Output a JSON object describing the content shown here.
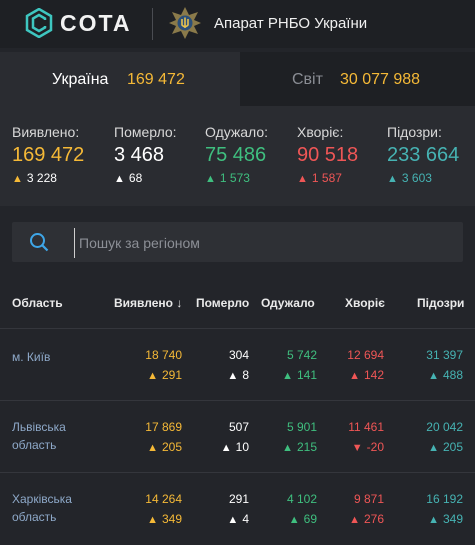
{
  "header": {
    "logo_text": "COTA",
    "org_name": "Апарат РНБО України"
  },
  "tabs": [
    {
      "label": "Україна",
      "value": "169 472"
    },
    {
      "label": "Світ",
      "value": "30 077 988"
    }
  ],
  "stats": [
    {
      "label": "Виявлено:",
      "value": "169 472",
      "delta": "3 228",
      "color": "#f5b937",
      "delta_dir": "up"
    },
    {
      "label": "Померло:",
      "value": "3 468",
      "delta": "68",
      "color": "#ffffff",
      "delta_dir": "up"
    },
    {
      "label": "Одужало:",
      "value": "75 486",
      "delta": "1 573",
      "color": "#3fbf7f",
      "delta_dir": "up"
    },
    {
      "label": "Хворіє:",
      "value": "90 518",
      "delta": "1 587",
      "color": "#ef5656",
      "delta_dir": "up"
    },
    {
      "label": "Підозри:",
      "value": "233 664",
      "delta": "3 603",
      "color": "#46b3b3",
      "delta_dir": "up"
    }
  ],
  "search": {
    "placeholder": "Пошук за регіоном",
    "value": ""
  },
  "table": {
    "headers": {
      "region": "Область",
      "confirmed": "Виявлено",
      "sort_arrow": "↓",
      "deaths": "Померло",
      "recovered": "Одужало",
      "sick": "Хворіє",
      "suspected": "Підозри"
    },
    "rows": [
      {
        "region_line1": "м. Київ",
        "region_line2": "",
        "confirmed": "18 740",
        "confirmed_delta": "291",
        "deaths": "304",
        "deaths_delta": "8",
        "recovered": "5 742",
        "recovered_delta": "141",
        "sick": "12 694",
        "sick_delta": "142",
        "suspected": "31 397",
        "suspected_delta": "488"
      },
      {
        "region_line1": "Львівська",
        "region_line2": "область",
        "confirmed": "17 869",
        "confirmed_delta": "205",
        "deaths": "507",
        "deaths_delta": "10",
        "recovered": "5 901",
        "recovered_delta": "215",
        "sick": "11 461",
        "sick_delta": "-20",
        "suspected": "20 042",
        "suspected_delta": "205"
      },
      {
        "region_line1": "Харківська",
        "region_line2": "область",
        "confirmed": "14 264",
        "confirmed_delta": "349",
        "deaths": "291",
        "deaths_delta": "4",
        "recovered": "4 102",
        "recovered_delta": "69",
        "sick": "9 871",
        "sick_delta": "276",
        "suspected": "16 192",
        "suspected_delta": "349"
      }
    ]
  },
  "colors": {
    "background": "#23252a",
    "panel": "#2a2c31",
    "confirmed": "#f5b937",
    "deaths": "#ffffff",
    "recovered": "#3fbf7f",
    "sick": "#ef5656",
    "suspected": "#46b3b3",
    "brand": "#3ec6c0"
  },
  "icons": {
    "logo": "cota-logo-icon",
    "emblem": "rnbo-emblem-icon",
    "search": "search-icon",
    "up": "arrow-up-icon",
    "down": "arrow-down-icon"
  }
}
